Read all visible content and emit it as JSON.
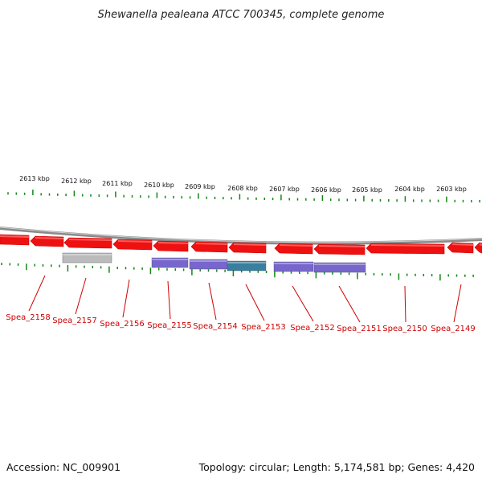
{
  "title": "Shewanella pealeana ATCC 700345, complete genome",
  "footer": {
    "accession": "Accession: NC_009901",
    "summary": "Topology: circular; Length: 5,174,581 bp; Genes: 4,420"
  },
  "colors": {
    "gene_red": "#ee1111",
    "gene_red_light": "#ff5a5a",
    "tick_green": "#118811",
    "label_red": "#cc0000",
    "backbone": "#888888",
    "purple": "#7766cc",
    "teal": "#3a7fa0",
    "gray": "#bbbbbb"
  },
  "kbp_labels": [
    "2613 kbp",
    "2612 kbp",
    "2611 kbp",
    "2610 kbp",
    "2609 kbp",
    "2608 kbp",
    "2607 kbp",
    "2606 kbp",
    "2605 kbp",
    "2604 kbp",
    "2603 kbp"
  ],
  "gene_labels": [
    "Spea_2158",
    "Spea_2157",
    "Spea_2156",
    "Spea_2155",
    "Spea_2154",
    "Spea_2153",
    "Spea_2152",
    "Spea_2151",
    "Spea_2150",
    "Spea_2149"
  ]
}
